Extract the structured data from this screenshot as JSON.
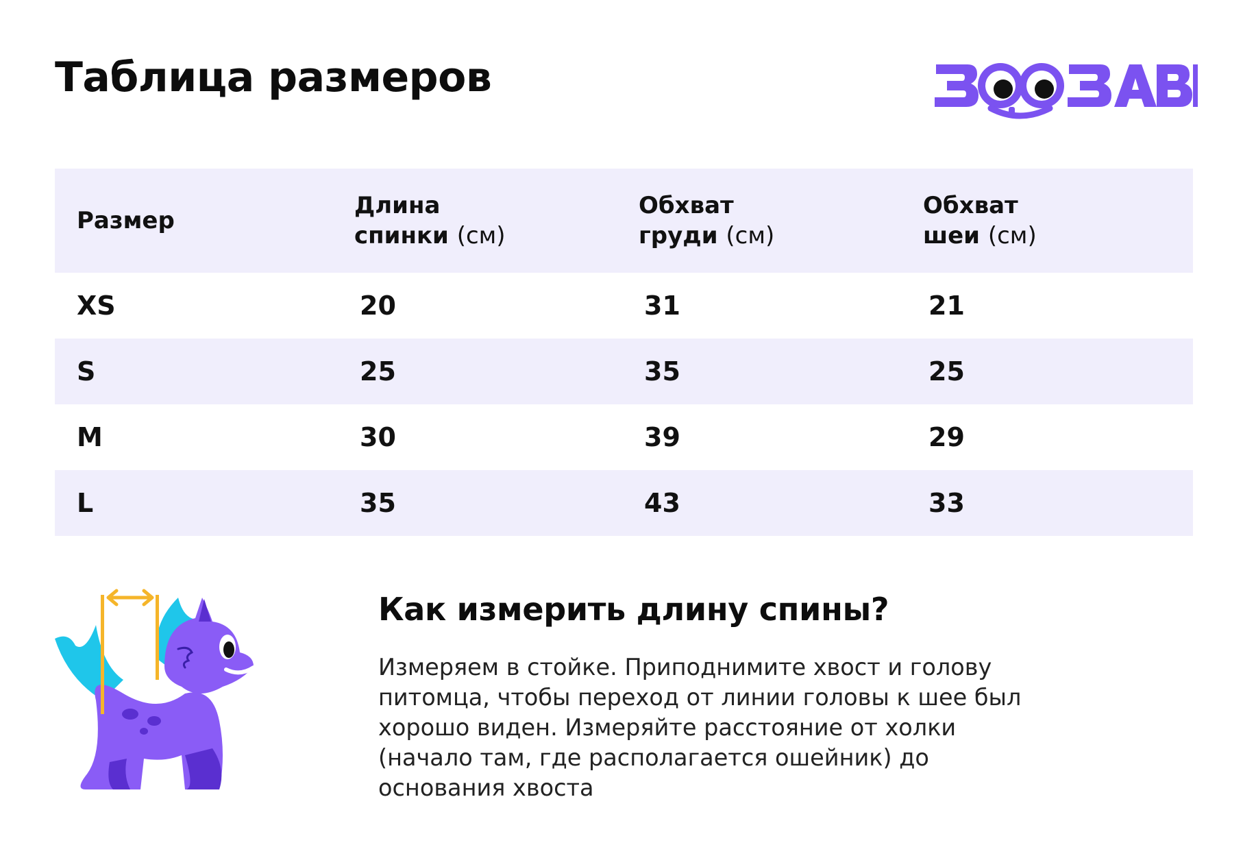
{
  "title": "Таблица размеров",
  "logo": {
    "text": "ЗООЗАВР",
    "color": "#7b52f0"
  },
  "table": {
    "headers": [
      {
        "label": "Размер",
        "unit": ""
      },
      {
        "label_line1": "Длина",
        "label_line2": "спинки",
        "unit": "(см)"
      },
      {
        "label_line1": "Обхват",
        "label_line2": "груди",
        "unit": "(см)"
      },
      {
        "label_line1": "Обхват",
        "label_line2": "шеи",
        "unit": "(см)"
      }
    ],
    "rows": [
      {
        "size": "XS",
        "back_length": "20",
        "chest": "31",
        "neck": "21"
      },
      {
        "size": "S",
        "back_length": "25",
        "chest": "35",
        "neck": "25"
      },
      {
        "size": "M",
        "back_length": "30",
        "chest": "39",
        "neck": "29"
      },
      {
        "size": "L",
        "back_length": "35",
        "chest": "43",
        "neck": "33"
      }
    ],
    "shade_color": "#f0eefc"
  },
  "howto": {
    "title": "Как измерить длину спины?",
    "lines": [
      "Измеряем в стойке. Приподнимите хвост и голову",
      "питомца, чтобы переход от линии головы к шее был",
      "хорошо виден. Измеряйте расстояние от холки",
      "(начало там, где располагается ошейник) до",
      "основания хвоста"
    ]
  },
  "colors": {
    "dino_body": "#8a5cf6",
    "dino_dark": "#5a2fd0",
    "dino_crest": "#1fc6ea",
    "measure_arrow": "#f5b52a"
  }
}
